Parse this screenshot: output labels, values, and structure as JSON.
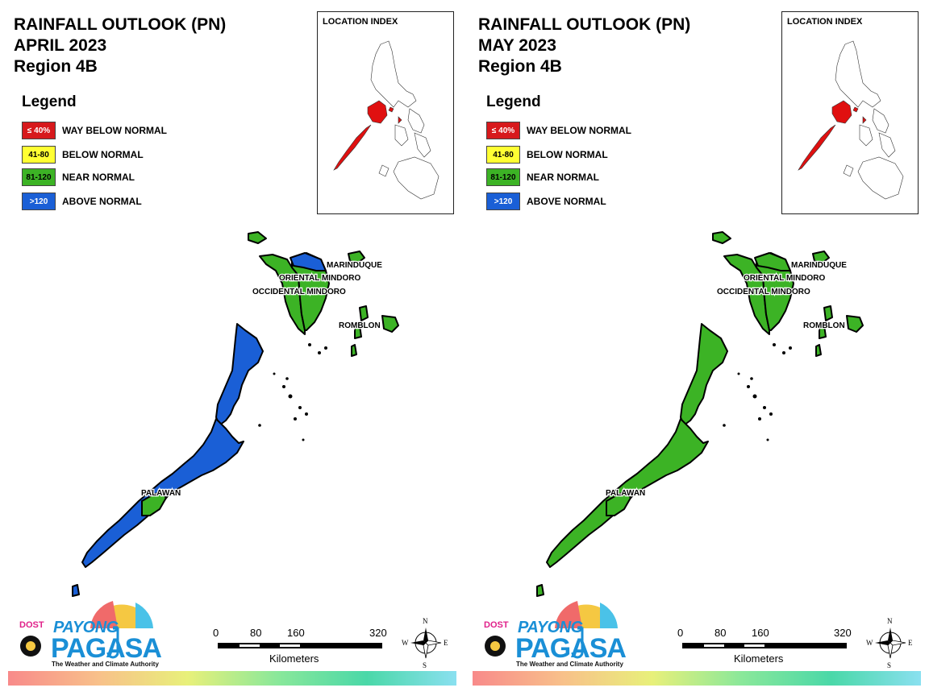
{
  "panels": [
    {
      "title_line1": "RAINFALL OUTLOOK (PN)",
      "title_line2": "APRIL 2023",
      "title_line3": "Region 4B",
      "legend_title": "Legend",
      "legend": [
        {
          "code": "≤ 40%",
          "label": "WAY BELOW NORMAL",
          "color": "#d7191c",
          "text_color": "#ffffff"
        },
        {
          "code": "41-80",
          "label": "BELOW NORMAL",
          "color": "#ffff33",
          "text_color": "#000000"
        },
        {
          "code": "81-120",
          "label": "NEAR NORMAL",
          "color": "#3cb325",
          "text_color": "#000000"
        },
        {
          "code": ">120",
          "label": "ABOVE NORMAL",
          "color": "#1a5fd6",
          "text_color": "#ffffff"
        }
      ],
      "inset_title": "LOCATION INDEX",
      "provinces": {
        "marinduque": "MARINDUQUE",
        "oriental_mindoro": "ORIENTAL MINDORO",
        "occidental_mindoro": "OCCIDENTAL MINDORO",
        "romblon": "ROMBLON",
        "palawan": "PALAWAN"
      },
      "province_categories": {
        "marinduque": "near_normal",
        "oriental_mindoro": "near_normal_with_above_normal_north",
        "occidental_mindoro": "near_normal",
        "romblon": "near_normal",
        "palawan": "mostly_above_normal"
      },
      "logo_dost": "DOST",
      "logo_payong": "PAYONG",
      "logo_pagasa": "PAGASA",
      "logo_tagline": "The Weather and Climate Authority",
      "scale_labels": [
        "0",
        "80",
        "160",
        "320"
      ],
      "scale_unit": "Kilometers",
      "compass": {
        "n": "N",
        "s": "S",
        "e": "E",
        "w": "W"
      }
    },
    {
      "title_line1": "RAINFALL OUTLOOK (PN)",
      "title_line2": "MAY 2023",
      "title_line3": "Region 4B",
      "legend_title": "Legend",
      "legend": [
        {
          "code": "≤ 40%",
          "label": "WAY BELOW NORMAL",
          "color": "#d7191c",
          "text_color": "#ffffff"
        },
        {
          "code": "41-80",
          "label": "BELOW NORMAL",
          "color": "#ffff33",
          "text_color": "#000000"
        },
        {
          "code": "81-120",
          "label": "NEAR NORMAL",
          "color": "#3cb325",
          "text_color": "#000000"
        },
        {
          "code": ">120",
          "label": "ABOVE NORMAL",
          "color": "#1a5fd6",
          "text_color": "#ffffff"
        }
      ],
      "inset_title": "LOCATION INDEX",
      "provinces": {
        "marinduque": "MARINDUQUE",
        "oriental_mindoro": "ORIENTAL MINDORO",
        "occidental_mindoro": "OCCIDENTAL MINDORO",
        "romblon": "ROMBLON",
        "palawan": "PALAWAN"
      },
      "province_categories": {
        "marinduque": "near_normal",
        "oriental_mindoro": "near_normal",
        "occidental_mindoro": "near_normal",
        "romblon": "near_normal",
        "palawan": "near_normal"
      },
      "logo_dost": "DOST",
      "logo_payong": "PAYONG",
      "logo_pagasa": "PAGASA",
      "logo_tagline": "The Weather and Climate Authority",
      "scale_labels": [
        "0",
        "80",
        "160",
        "320"
      ],
      "scale_unit": "Kilometers",
      "compass": {
        "n": "N",
        "s": "S",
        "e": "E",
        "w": "W"
      }
    }
  ],
  "colors": {
    "near_normal": "#3cb325",
    "above_normal": "#1a5fd6",
    "highlight_region": "#e01010",
    "outline": "#000000"
  }
}
